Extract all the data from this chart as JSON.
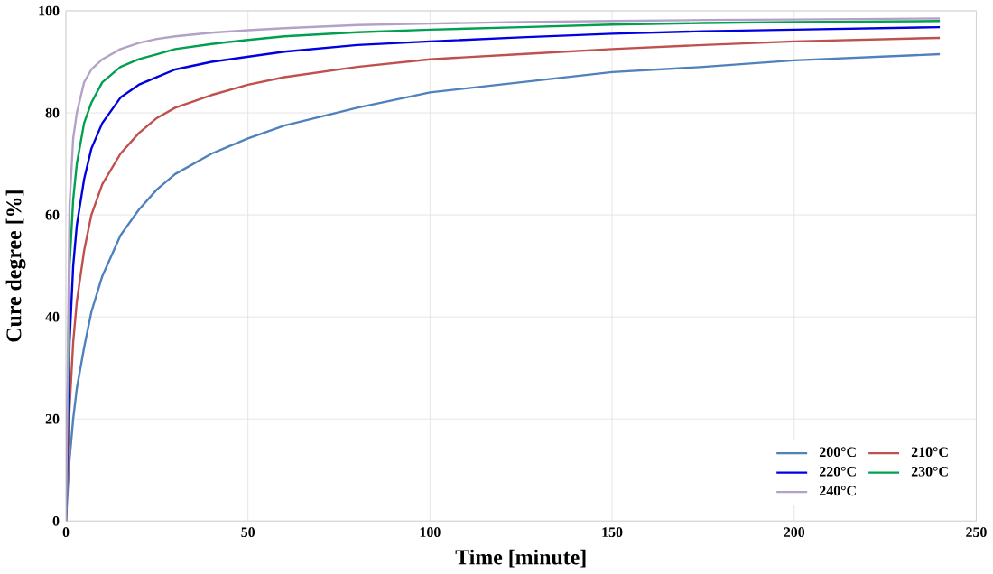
{
  "chart_data": {
    "type": "line",
    "xlabel": "Time [minute]",
    "ylabel": "Cure degree [%]",
    "xlim": [
      0,
      250
    ],
    "ylim": [
      0,
      100
    ],
    "xticks": [
      0,
      50,
      100,
      150,
      200,
      250
    ],
    "yticks": [
      0,
      20,
      40,
      60,
      80,
      100
    ],
    "grid": true,
    "legend": "bottom right",
    "marker": "none",
    "line_style": "solid",
    "x": [
      0,
      1,
      2,
      3,
      5,
      7,
      10,
      15,
      20,
      25,
      30,
      40,
      50,
      60,
      80,
      100,
      125,
      150,
      175,
      200,
      240
    ],
    "series": [
      {
        "name": "200°C",
        "color": "#4f81bd",
        "values": [
          0,
          12,
          20,
          26,
          34,
          41,
          48,
          56,
          61,
          65,
          68,
          72,
          75,
          77.5,
          81,
          84,
          86,
          88,
          89,
          90.3,
          91.5
        ]
      },
      {
        "name": "210°C",
        "color": "#c0504d",
        "values": [
          0,
          22,
          35,
          43,
          53,
          60,
          66,
          72,
          76,
          79,
          81,
          83.5,
          85.5,
          87,
          89,
          90.5,
          91.5,
          92.5,
          93.3,
          94,
          94.7
        ]
      },
      {
        "name": "220°C",
        "color": "#0000e0",
        "values": [
          0,
          35,
          50,
          58,
          67,
          73,
          78,
          83,
          85.5,
          87,
          88.5,
          90,
          91,
          92,
          93.3,
          94,
          94.8,
          95.5,
          96,
          96.3,
          96.8
        ]
      },
      {
        "name": "230°C",
        "color": "#00a050",
        "values": [
          0,
          50,
          63,
          70,
          78,
          82,
          86,
          89,
          90.5,
          91.5,
          92.5,
          93.5,
          94.3,
          95,
          95.8,
          96.3,
          96.8,
          97.3,
          97.6,
          97.8,
          98
        ]
      },
      {
        "name": "240°C",
        "color": "#b3a2c7",
        "values": [
          0,
          62,
          75,
          80,
          86,
          88.5,
          90.5,
          92.5,
          93.7,
          94.5,
          95,
          95.7,
          96.2,
          96.6,
          97.2,
          97.5,
          97.8,
          98,
          98.2,
          98.3,
          98.5
        ]
      }
    ]
  }
}
